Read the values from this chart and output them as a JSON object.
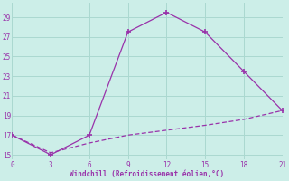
{
  "line1_x": [
    0,
    3,
    6,
    9,
    12,
    15,
    18,
    21
  ],
  "line1_y": [
    17,
    15,
    17,
    27.5,
    29.5,
    27.5,
    23.5,
    19.5
  ],
  "line2_x": [
    0,
    3,
    6,
    9,
    12,
    15,
    18,
    21
  ],
  "line2_y": [
    17,
    15.2,
    16.2,
    17.0,
    17.5,
    18.0,
    18.6,
    19.5
  ],
  "line_color": "#9932aa",
  "xlabel": "Windchill (Refroidissement éolien,°C)",
  "xlim": [
    0,
    21
  ],
  "ylim": [
    14.5,
    30.5
  ],
  "xticks": [
    0,
    3,
    6,
    9,
    12,
    15,
    18,
    21
  ],
  "yticks": [
    15,
    17,
    19,
    21,
    23,
    25,
    27,
    29
  ],
  "bg_color": "#cceee8",
  "grid_color": "#aad8d0"
}
